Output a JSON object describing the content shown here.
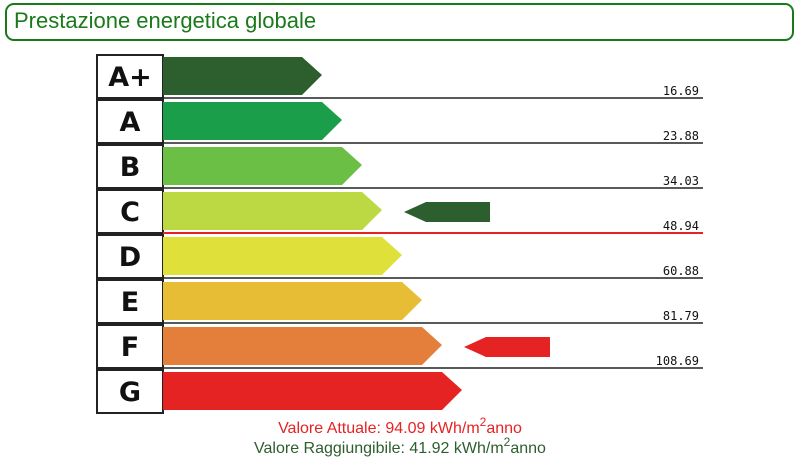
{
  "chart_data": {
    "type": "energy-label",
    "title": "Prestazione energetica globale",
    "title_color": "#1a7a1a",
    "categories": [
      "A+",
      "A",
      "B",
      "C",
      "D",
      "E",
      "F",
      "G"
    ],
    "colors": [
      "#2d5e2d",
      "#1a9e4a",
      "#6bbf45",
      "#bcd842",
      "#e0e03a",
      "#e6bd35",
      "#e37f3a",
      "#e52323"
    ],
    "thresholds": [
      16.69,
      23.88,
      34.03,
      48.94,
      60.88,
      81.79,
      108.69
    ],
    "limit_line": {
      "after": "C",
      "color": "#e52323"
    },
    "current": {
      "class": "F",
      "color": "#e52323",
      "text": "Valore Attuale: 94.09 kWh/m",
      "sup": "2",
      "tail": "anno"
    },
    "achievable": {
      "class": "C",
      "color": "#2d5e2d",
      "text": "Valore Raggiungibile: 41.92 kWh/m",
      "sup": "2",
      "tail": "anno"
    }
  }
}
